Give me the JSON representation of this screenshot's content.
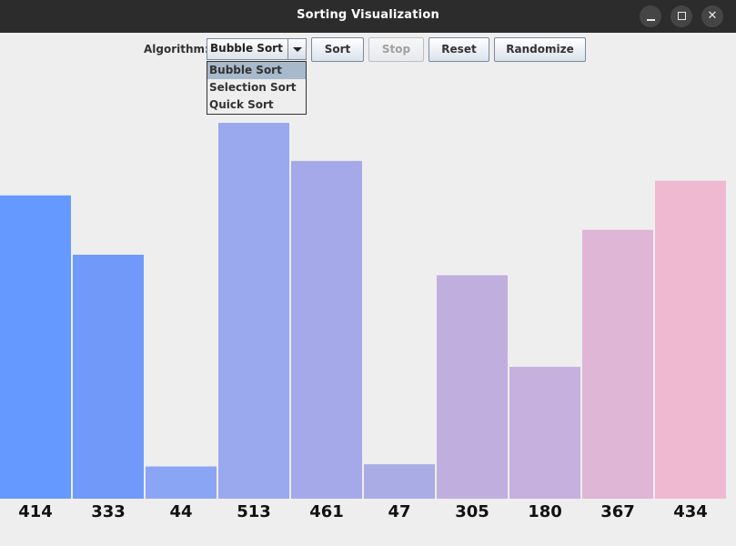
{
  "window": {
    "title": "Sorting Visualization"
  },
  "toolbar": {
    "algorithm_label": "Algorithm:",
    "algorithm_selected": "Bubble Sort",
    "sort_label": "Sort",
    "stop_label": "Stop",
    "reset_label": "Reset",
    "randomize_label": "Randomize"
  },
  "dropdown": {
    "options": [
      "Bubble Sort",
      "Selection Sort",
      "Quick Sort"
    ],
    "selected_index": 0
  },
  "chart_data": {
    "type": "bar",
    "categories": [
      "414",
      "333",
      "44",
      "513",
      "461",
      "47",
      "305",
      "180",
      "367",
      "434"
    ],
    "values": [
      414,
      333,
      44,
      513,
      461,
      47,
      305,
      180,
      367,
      434
    ],
    "colors": [
      "#6699ff",
      "#7099fa",
      "#8aa5f4",
      "#9aa8ee",
      "#a5a9ea",
      "#aaace6",
      "#c0aedf",
      "#c5b0de",
      "#dfb6d6",
      "#efb9d2"
    ],
    "title": "",
    "xlabel": "",
    "ylabel": ""
  }
}
